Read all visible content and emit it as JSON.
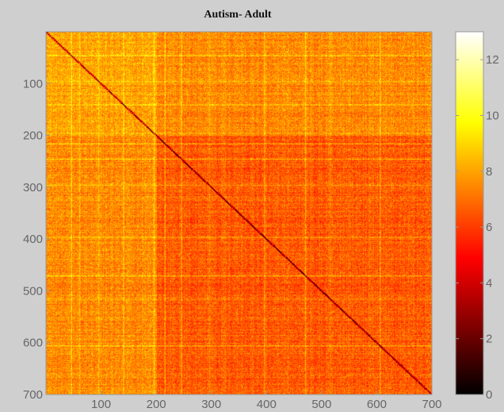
{
  "chart_data": {
    "type": "heatmap",
    "title": "Autism- Adult",
    "xlabel": "",
    "ylabel": "",
    "xlim": [
      0,
      700
    ],
    "ylim": [
      700,
      0
    ],
    "x_ticks": [
      100,
      200,
      300,
      400,
      500,
      600,
      700
    ],
    "y_ticks": [
      100,
      200,
      300,
      400,
      500,
      600,
      700
    ],
    "colormap": "hot",
    "colorbar": {
      "min": 0,
      "max": 13,
      "ticks": [
        0,
        2,
        4,
        6,
        8,
        10,
        12
      ]
    },
    "matrix_size": 700,
    "diagonal_value": 0,
    "block_structure": [
      {
        "range": [
          0,
          200
        ],
        "mean_value": 8.0
      },
      {
        "range": [
          200,
          700
        ],
        "mean_value": 6.6
      }
    ],
    "bright_lines": [
      45,
      60,
      95,
      140,
      195,
      215,
      245,
      295,
      395,
      470,
      515,
      605
    ]
  },
  "colors": {
    "background": "#cfcfcf",
    "axes_frame": "#999999",
    "tick_text": "#666666",
    "title_text": "#111111"
  }
}
